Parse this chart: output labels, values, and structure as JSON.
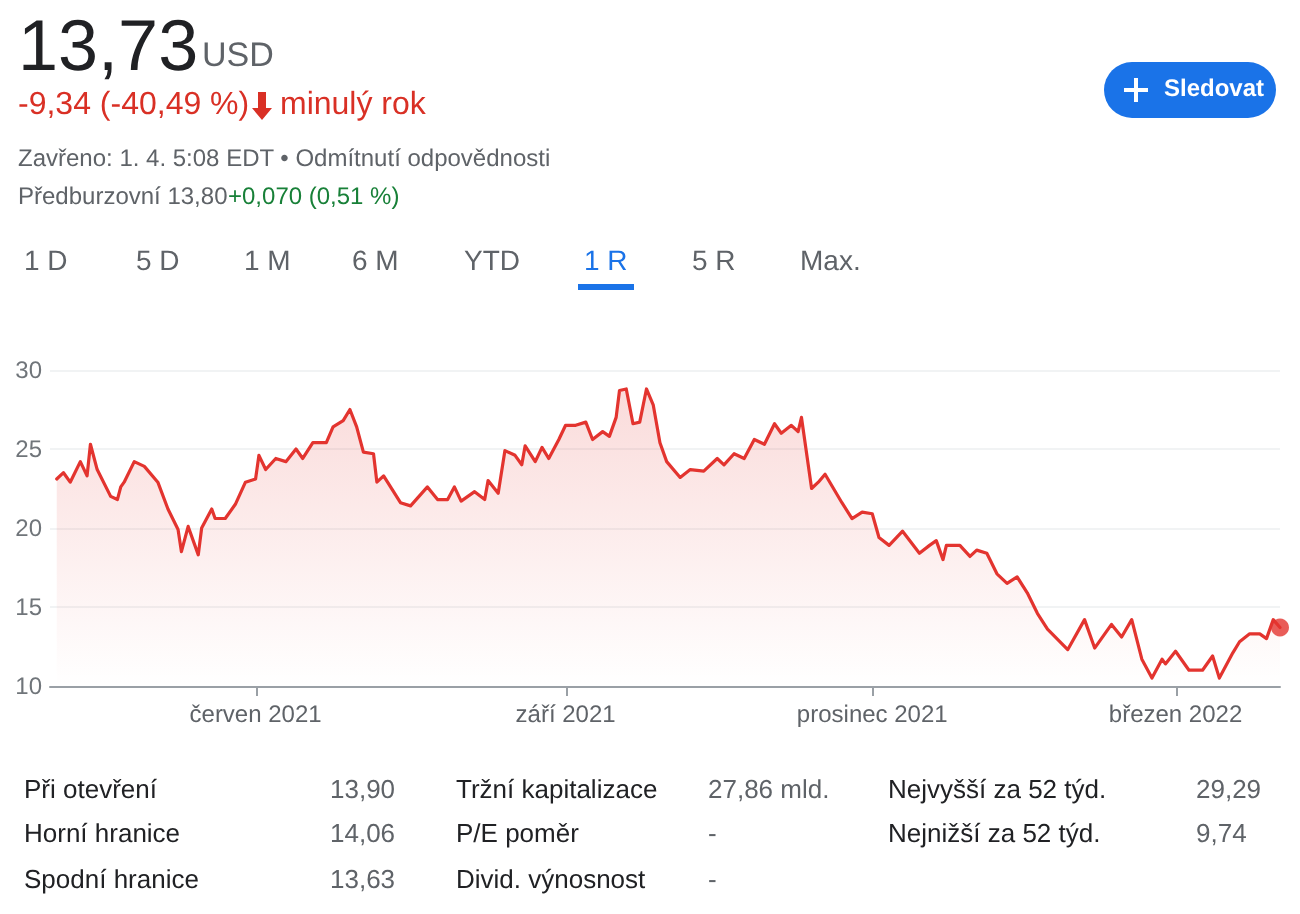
{
  "chart_data": {
    "type": "area",
    "title": "13,73",
    "subtitle": "USD",
    "annotations": [
      "-9,34 (-40,49 %)",
      "minulý rok",
      "Zavřeno: 1. 4. 5:08 EDT • Odmítnutí odpovědnosti",
      "Předburzovní 13,80",
      "+0,070 (0,51 %)",
      "Sledovat",
      "1 D",
      "5 D",
      "1 M",
      "6 M",
      "YTD",
      "1 R",
      "5 R",
      "Max.",
      "Při otevření",
      "13,90",
      "Horní hranice",
      "14,06",
      "Spodní hranice",
      "13,63",
      "Tržní kapitalizace",
      "27,86 mld.",
      "P/E poměr",
      "-",
      "Divid. výnosnost",
      "-",
      "Nejvyšší za 52 týd.",
      "29,29",
      "Nejnižší za 52 týd.",
      "9,74"
    ],
    "xlim": [
      "2021-04-01",
      "2022-04-01"
    ],
    "xticks": [
      {
        "value": "2021-06-01",
        "label": "červen 2021"
      },
      {
        "value": "2021-09-01",
        "label": "září 2021"
      },
      {
        "value": "2021-12-01",
        "label": "prosinec 2021"
      },
      {
        "value": "2022-03-01",
        "label": "březen 2022"
      }
    ],
    "ylim": [
      10,
      30
    ],
    "yticks": [
      10,
      15,
      20,
      25,
      30
    ],
    "grid": "y",
    "marker": "none",
    "line_style": "solid",
    "series": [
      {
        "type": "area",
        "color": "#e3342f",
        "x": [
          "2021-04-03",
          "2021-04-05",
          "2021-04-07",
          "2021-04-10",
          "2021-04-12",
          "2021-04-13",
          "2021-04-15",
          "2021-04-19",
          "2021-04-21",
          "2021-04-22",
          "2021-04-23",
          "2021-04-26",
          "2021-04-29",
          "2021-05-03",
          "2021-05-06",
          "2021-05-09",
          "2021-05-10",
          "2021-05-12",
          "2021-05-15",
          "2021-05-16",
          "2021-05-19",
          "2021-05-20",
          "2021-05-23",
          "2021-05-26",
          "2021-05-29",
          "2021-06-01",
          "2021-06-02",
          "2021-06-04",
          "2021-06-07",
          "2021-06-10",
          "2021-06-13",
          "2021-06-15",
          "2021-06-18",
          "2021-06-22",
          "2021-06-24",
          "2021-06-27",
          "2021-06-29",
          "2021-07-01",
          "2021-07-03",
          "2021-07-06",
          "2021-07-07",
          "2021-07-09",
          "2021-07-14",
          "2021-07-17",
          "2021-07-22",
          "2021-07-25",
          "2021-07-28",
          "2021-07-30",
          "2021-08-01",
          "2021-08-05",
          "2021-08-08",
          "2021-08-09",
          "2021-08-12",
          "2021-08-14",
          "2021-08-17",
          "2021-08-19",
          "2021-08-20",
          "2021-08-23",
          "2021-08-25",
          "2021-08-27",
          "2021-08-30",
          "2021-09-01",
          "2021-09-04",
          "2021-09-07",
          "2021-09-09",
          "2021-09-12",
          "2021-09-14",
          "2021-09-16",
          "2021-09-17",
          "2021-09-19",
          "2021-09-21",
          "2021-09-23",
          "2021-09-25",
          "2021-09-27",
          "2021-09-29",
          "2021-10-01",
          "2021-10-05",
          "2021-10-08",
          "2021-10-12",
          "2021-10-16",
          "2021-10-18",
          "2021-10-21",
          "2021-10-24",
          "2021-10-27",
          "2021-10-30",
          "2021-11-02",
          "2021-11-04",
          "2021-11-07",
          "2021-11-09",
          "2021-11-10",
          "2021-11-13",
          "2021-11-15",
          "2021-11-17",
          "2021-11-22",
          "2021-11-25",
          "2021-11-28",
          "2021-12-01",
          "2021-12-03",
          "2021-12-06",
          "2021-12-10",
          "2021-12-15",
          "2021-12-18",
          "2021-12-20",
          "2021-12-22",
          "2021-12-23",
          "2021-12-27",
          "2021-12-30",
          "2022-01-01",
          "2022-01-04",
          "2022-01-07",
          "2022-01-10",
          "2022-01-13",
          "2022-01-16",
          "2022-01-19",
          "2022-01-22",
          "2022-01-28",
          "2022-02-02",
          "2022-02-05",
          "2022-02-07",
          "2022-02-10",
          "2022-02-13",
          "2022-02-16",
          "2022-02-19",
          "2022-02-22",
          "2022-02-25",
          "2022-02-26",
          "2022-03-01",
          "2022-03-05",
          "2022-03-09",
          "2022-03-12",
          "2022-03-14",
          "2022-03-18",
          "2022-03-20",
          "2022-03-23",
          "2022-03-26",
          "2022-03-28",
          "2022-03-30",
          "2022-04-01"
        ],
        "values": [
          23.1,
          23.5,
          22.9,
          24.2,
          23.3,
          25.3,
          23.7,
          22.0,
          21.8,
          22.6,
          22.9,
          24.2,
          23.9,
          22.9,
          21.2,
          19.9,
          18.5,
          20.1,
          18.3,
          20.0,
          21.2,
          20.6,
          20.6,
          21.5,
          22.9,
          23.1,
          24.6,
          23.7,
          24.4,
          24.2,
          25.0,
          24.4,
          25.4,
          25.4,
          26.4,
          26.8,
          27.5,
          26.4,
          24.8,
          24.7,
          22.9,
          23.3,
          21.6,
          21.4,
          22.6,
          21.8,
          21.8,
          22.6,
          21.7,
          22.3,
          21.8,
          23.0,
          22.2,
          24.9,
          24.6,
          24.0,
          25.2,
          24.2,
          25.1,
          24.4,
          25.6,
          26.5,
          26.5,
          26.7,
          25.6,
          26.1,
          25.8,
          27.0,
          28.7,
          28.8,
          26.6,
          26.7,
          28.8,
          27.8,
          25.4,
          24.2,
          23.2,
          23.7,
          23.6,
          24.4,
          24.0,
          24.7,
          24.4,
          25.6,
          25.3,
          26.6,
          26.0,
          26.5,
          26.1,
          27.0,
          22.5,
          22.9,
          23.4,
          21.6,
          20.6,
          21.0,
          20.9,
          19.4,
          18.9,
          19.8,
          18.4,
          18.9,
          19.2,
          18.0,
          18.9,
          18.9,
          18.2,
          18.6,
          18.4,
          17.1,
          16.5,
          16.9,
          15.9,
          14.6,
          13.6,
          12.3,
          14.2,
          12.4,
          13.0,
          13.9,
          13.1,
          14.2,
          11.7,
          10.5,
          11.7,
          11.4,
          12.2,
          11.0,
          11.0,
          11.9,
          10.5,
          12.1,
          12.8,
          13.3,
          13.3,
          13.0,
          14.2,
          13.7
        ]
      },
      {
        "type": "scatter",
        "color": "#e3342f",
        "marker": "circle",
        "x": [
          "2022-04-01"
        ],
        "values": [
          13.7
        ]
      }
    ]
  }
}
